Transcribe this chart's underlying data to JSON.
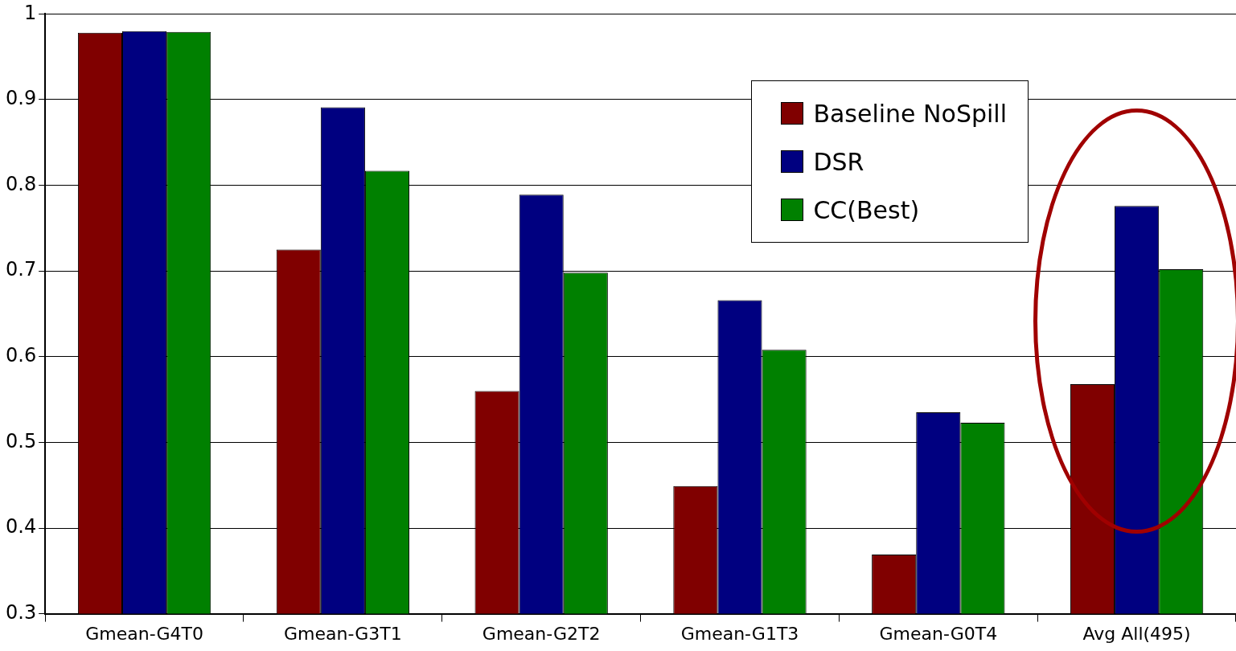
{
  "chart_data": {
    "type": "bar",
    "categories": [
      "Gmean-G4T0",
      "Gmean-G3T1",
      "Gmean-G2T2",
      "Gmean-G1T3",
      "Gmean-G0T4",
      "Avg All(495)"
    ],
    "series": [
      {
        "name": "Baseline NoSpill",
        "color": "#800000",
        "values": [
          0.978,
          0.725,
          0.56,
          0.449,
          0.369,
          0.568
        ]
      },
      {
        "name": "DSR",
        "color": "#000080",
        "values": [
          0.98,
          0.891,
          0.789,
          0.666,
          0.535,
          0.776
        ]
      },
      {
        "name": "CC(Best)",
        "color": "#008000",
        "values": [
          0.979,
          0.817,
          0.698,
          0.608,
          0.523,
          0.702
        ]
      }
    ],
    "ylim": [
      0.3,
      1
    ],
    "yticks": [
      0.3,
      0.4,
      0.5,
      0.6,
      0.7,
      0.8,
      0.9,
      1
    ],
    "grid": "y",
    "legend": "top right"
  }
}
